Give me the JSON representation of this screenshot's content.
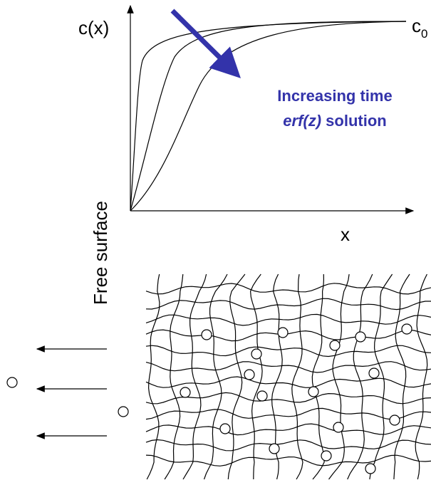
{
  "plot": {
    "y_label": "c(x)",
    "x_label": "x",
    "end_label": {
      "base": "c",
      "subscript": "0"
    }
  },
  "annotation": {
    "line1": "Increasing time",
    "line2_italic": "erf(z)",
    "line2_rest": "solution"
  },
  "lattice": {
    "side_label": "Free surface"
  }
}
